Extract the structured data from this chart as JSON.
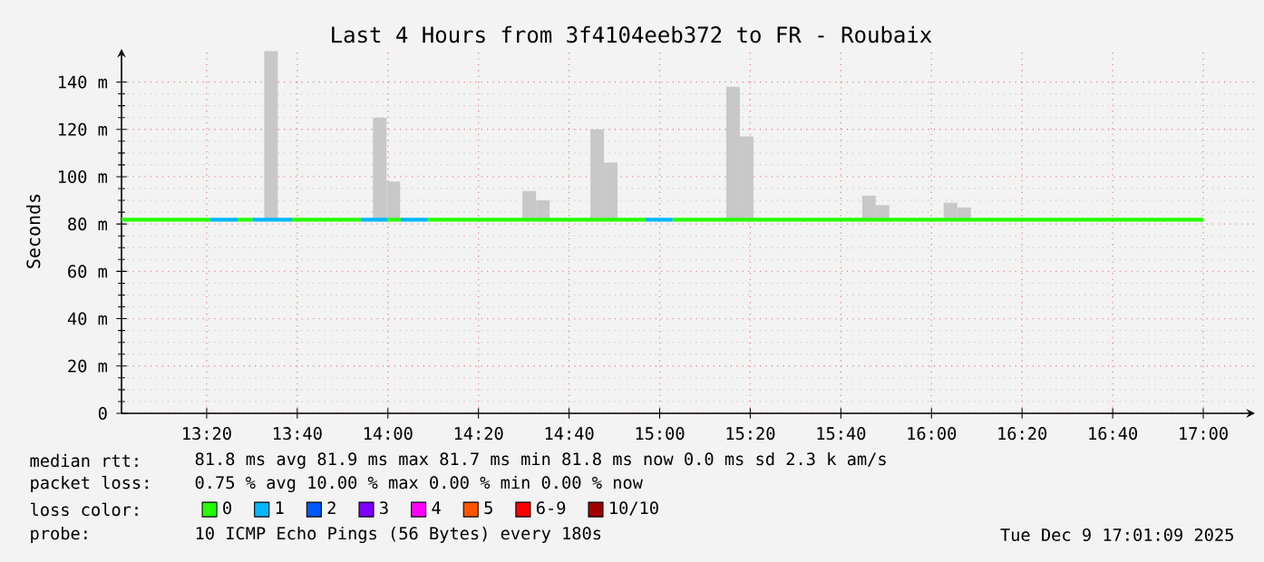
{
  "chart_data": {
    "type": "line",
    "title": "Last 4 Hours from 3f4104eeb372 to FR - Roubaix",
    "ylabel": "Seconds",
    "legend_title": "loss color:",
    "xlim": [
      13.02,
      17.19
    ],
    "ylim": [
      0,
      154
    ],
    "xticks": [
      {
        "value": 13.3333,
        "label": "13:20"
      },
      {
        "value": 13.6667,
        "label": "13:40"
      },
      {
        "value": 14,
        "label": "14:00"
      },
      {
        "value": 14.3333,
        "label": "14:20"
      },
      {
        "value": 14.6667,
        "label": "14:40"
      },
      {
        "value": 15,
        "label": "15:00"
      },
      {
        "value": 15.3333,
        "label": "15:20"
      },
      {
        "value": 15.6667,
        "label": "15:40"
      },
      {
        "value": 16,
        "label": "16:00"
      },
      {
        "value": 16.3333,
        "label": "16:20"
      },
      {
        "value": 16.6667,
        "label": "16:40"
      },
      {
        "value": 17,
        "label": "17:00"
      }
    ],
    "yticks": [
      0,
      {
        "value": 20,
        "label": "20 m"
      },
      {
        "value": 40,
        "label": "40 m"
      },
      {
        "value": 60,
        "label": "60 m"
      },
      {
        "value": 80,
        "label": "80 m"
      },
      {
        "value": 100,
        "label": "100 m"
      },
      {
        "value": 120,
        "label": "120 m"
      },
      {
        "value": 140,
        "label": "140 m"
      }
    ],
    "grid": true,
    "legend": "bottom",
    "series": [
      {
        "type": "bar",
        "color": "#c8c8c8",
        "x": [
          13.57,
          13.97,
          14.02,
          14.52,
          14.57,
          14.77,
          14.82,
          15.27,
          15.32,
          15.77,
          15.82,
          16.07,
          16.12
        ],
        "base": [
          82,
          82,
          82,
          82,
          82,
          82,
          82,
          82,
          82,
          82,
          82,
          82,
          82
        ],
        "values": [
          71,
          43,
          16,
          12,
          8,
          38,
          24,
          56,
          35,
          10,
          6,
          7,
          5
        ]
      },
      {
        "name": "0",
        "color": "#26ff00",
        "x": [
          13.02,
          13.345,
          13.4,
          13.447,
          13.502,
          13.55,
          13.647,
          13.9,
          13.95,
          13.998,
          14.047,
          14.1,
          14.147,
          14.947,
          15.0,
          15.047,
          17.0
        ],
        "values": [
          81.8,
          81.8,
          null,
          81.8,
          81.8,
          null,
          81.8,
          81.8,
          null,
          81.8,
          81.8,
          null,
          81.8,
          81.8,
          null,
          81.8,
          81.8
        ]
      },
      {
        "name": "1",
        "color": "#00b8ff",
        "x": [
          13.345,
          13.447,
          13.47,
          13.502,
          13.647,
          13.75,
          13.9,
          13.998,
          14.02,
          14.047,
          14.147,
          14.5,
          14.947,
          15.047
        ],
        "values": [
          81.8,
          81.8,
          null,
          81.8,
          81.8,
          null,
          81.8,
          81.8,
          null,
          81.8,
          81.8,
          null,
          81.8,
          81.8
        ]
      },
      {
        "name": "2",
        "color": "#0059ff"
      },
      {
        "name": "3",
        "color": "#7e00ff"
      },
      {
        "name": "4",
        "color": "#ff00ff"
      },
      {
        "name": "5",
        "color": "#ff5500"
      },
      {
        "name": "6-9",
        "color": "#ff0000"
      },
      {
        "name": "10/10",
        "color": "#a10000"
      }
    ],
    "annotations": [
      "median rtt:",
      "81.8 ms avg 81.9 ms max 81.7 ms min 81.8 ms now 0.0 ms sd 2.3 k am/s",
      "packet loss:",
      "0.75 % avg 10.00 % max 0.00 % min 0.00 % now",
      "probe:",
      "10 ICMP Echo Pings (56 Bytes) every 180s",
      "Tue Dec 9 17:01:09 2025"
    ]
  }
}
